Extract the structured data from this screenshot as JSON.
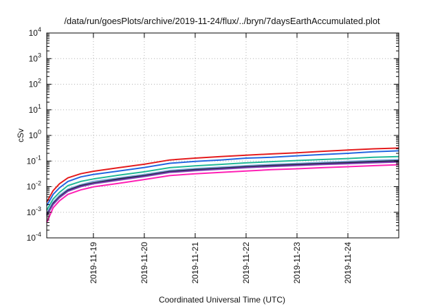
{
  "chart_data": {
    "type": "line",
    "title": "/data/run/goesPlots/archive/2019-11-24/flux/../bryn/7daysEarthAccumulated.plot",
    "xlabel": "Coordinated Universal Time (UTC)",
    "ylabel": "cSv",
    "yscale": "log",
    "ylim": [
      0.0001,
      10000
    ],
    "y_tick_base": "10",
    "y_tick_exponents": [
      "-4",
      "-3",
      "-2",
      "-1",
      "0",
      "1",
      "2",
      "3",
      "4"
    ],
    "xlim": [
      "2019-11-18 02:00",
      "2019-11-24 23:59"
    ],
    "x_ticks": [
      "2019-11-19",
      "2019-11-20",
      "2019-11-21",
      "2019-11-22",
      "2019-11-23",
      "2019-11-24"
    ],
    "grid": true,
    "legend": "none",
    "x": [
      "2019-11-18 02:00",
      "2019-11-18 05:00",
      "2019-11-18 08:00",
      "2019-11-18 12:00",
      "2019-11-18 18:00",
      "2019-11-19 00:00",
      "2019-11-19 12:00",
      "2019-11-20 00:00",
      "2019-11-20 12:00",
      "2019-11-21 00:00",
      "2019-11-21 12:00",
      "2019-11-22 00:00",
      "2019-11-22 12:00",
      "2019-11-23 00:00",
      "2019-11-23 12:00",
      "2019-11-24 00:00",
      "2019-11-24 12:00",
      "2019-11-24 23:59"
    ],
    "series": [
      {
        "color": "#e41a1c",
        "values": [
          0.0025,
          0.007,
          0.013,
          0.022,
          0.032,
          0.04,
          0.055,
          0.075,
          0.11,
          0.13,
          0.15,
          0.17,
          0.19,
          0.21,
          0.24,
          0.27,
          0.3,
          0.32
        ]
      },
      {
        "color": "#2166e0",
        "values": [
          0.0018,
          0.005,
          0.009,
          0.016,
          0.024,
          0.03,
          0.041,
          0.056,
          0.082,
          0.097,
          0.11,
          0.13,
          0.14,
          0.16,
          0.18,
          0.2,
          0.23,
          0.25
        ]
      },
      {
        "color": "#1fb896",
        "values": [
          0.0012,
          0.0033,
          0.006,
          0.011,
          0.016,
          0.02,
          0.028,
          0.038,
          0.055,
          0.065,
          0.074,
          0.085,
          0.095,
          0.105,
          0.115,
          0.125,
          0.14,
          0.15
        ]
      },
      {
        "color": "#7fa8d8",
        "values": [
          0.0009,
          0.0025,
          0.0046,
          0.008,
          0.012,
          0.016,
          0.022,
          0.03,
          0.043,
          0.051,
          0.058,
          0.066,
          0.074,
          0.081,
          0.089,
          0.097,
          0.106,
          0.114
        ]
      },
      {
        "color": "#222244",
        "values": [
          0.0008,
          0.0022,
          0.004,
          0.0072,
          0.011,
          0.014,
          0.02,
          0.027,
          0.039,
          0.046,
          0.052,
          0.06,
          0.067,
          0.073,
          0.08,
          0.087,
          0.095,
          0.102
        ]
      },
      {
        "color": "#7a3fb0",
        "values": [
          0.00075,
          0.002,
          0.0037,
          0.0066,
          0.01,
          0.013,
          0.018,
          0.025,
          0.036,
          0.042,
          0.048,
          0.055,
          0.061,
          0.067,
          0.073,
          0.079,
          0.086,
          0.092
        ]
      },
      {
        "color": "#ff1fb4",
        "values": [
          0.0004,
          0.0015,
          0.0028,
          0.005,
          0.0075,
          0.0098,
          0.0135,
          0.019,
          0.027,
          0.032,
          0.036,
          0.041,
          0.046,
          0.05,
          0.055,
          0.06,
          0.066,
          0.072
        ]
      }
    ]
  }
}
